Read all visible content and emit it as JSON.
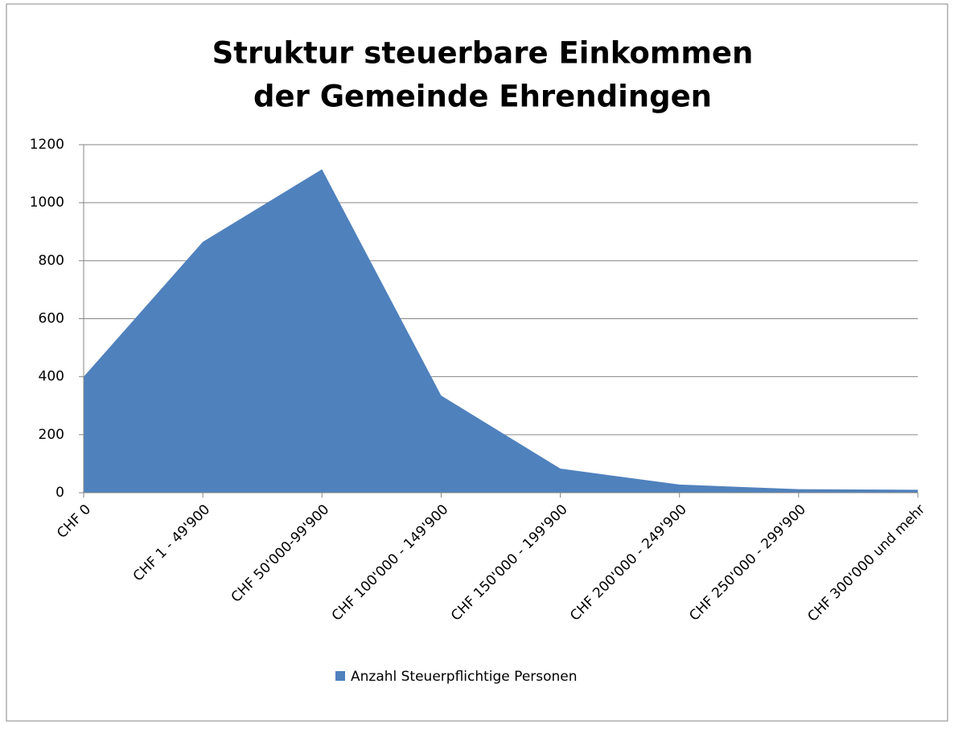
{
  "chart_data": {
    "type": "area",
    "title": [
      "Struktur steuerbare Einkommen",
      "der Gemeinde Ehrendingen"
    ],
    "categories": [
      "CHF 0",
      "CHF 1 - 49'900",
      "CHF 50'000-99'900",
      "CHF 100'000 - 149'900",
      "CHF 150'000 - 199'900",
      "CHF 200'000 - 249'900",
      "CHF 250'000 - 299'900",
      "CHF 300'000 und mehr"
    ],
    "series": [
      {
        "name": "Anzahl Steuerpflichtige Personen",
        "color": "#4f81bd",
        "values": [
          400,
          865,
          1115,
          335,
          83,
          28,
          12,
          10
        ]
      }
    ],
    "ylim": [
      0,
      1200
    ],
    "yticks": [
      0,
      200,
      400,
      600,
      800,
      1000,
      1200
    ],
    "grid": true,
    "legend": "bottom"
  }
}
